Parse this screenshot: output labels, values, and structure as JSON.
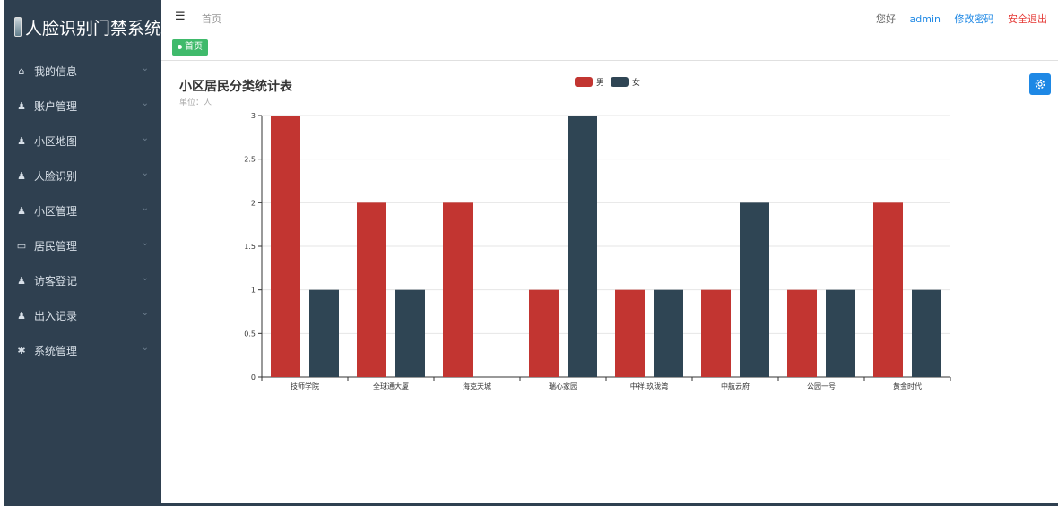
{
  "app": {
    "title": "人脸识别门禁系统"
  },
  "sidebar": {
    "items": [
      {
        "label": "我的信息",
        "icon": "home-icon"
      },
      {
        "label": "账户管理",
        "icon": "user-icon"
      },
      {
        "label": "小区地图",
        "icon": "user-icon"
      },
      {
        "label": "人脸识别",
        "icon": "user-icon"
      },
      {
        "label": "小区管理",
        "icon": "user-icon"
      },
      {
        "label": "居民管理",
        "icon": "id-card-icon"
      },
      {
        "label": "访客登记",
        "icon": "user-icon"
      },
      {
        "label": "出入记录",
        "icon": "user-icon"
      },
      {
        "label": "系统管理",
        "icon": "gear-icon"
      }
    ]
  },
  "header": {
    "breadcrumb": "首页",
    "greeting": "您好",
    "username": "admin",
    "change_password": "修改密码",
    "logout": "安全退出"
  },
  "tabs": [
    {
      "label": "首页"
    }
  ],
  "colors": {
    "male": "#c23531",
    "female": "#2f4554",
    "sidebar": "#2f4050",
    "tab": "#3fba6b",
    "accent": "#1e88e5"
  },
  "chart_data": {
    "type": "bar",
    "title": "小区居民分类统计表",
    "subtitle": "单位：人",
    "categories": [
      "技师学院",
      "全球通大厦",
      "海克天城",
      "瑞心家园",
      "中祥.玖珑湾",
      "中航云府",
      "公园一号",
      "黄金时代"
    ],
    "series": [
      {
        "name": "男",
        "values": [
          3,
          2,
          2,
          1,
          1,
          1,
          1,
          2
        ]
      },
      {
        "name": "女",
        "values": [
          1,
          1,
          0,
          3,
          1,
          2,
          1,
          1
        ]
      }
    ],
    "yticks": [
      "0",
      "0.5",
      "1",
      "1.5",
      "2",
      "2.5",
      "3"
    ],
    "ylim": [
      0,
      3
    ],
    "legend_position": "top-center",
    "grid": true
  }
}
